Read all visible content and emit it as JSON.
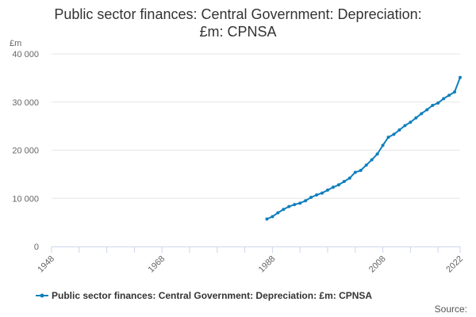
{
  "title_line1": "Public sector finances: Central Government: Depreciation:",
  "title_line2": "£m: CPNSA",
  "source_label": "Source:",
  "colors": {
    "series": "#0f7fbd",
    "grid": "#e6e6e6",
    "axis": "#ccd6eb"
  },
  "chart_data": {
    "type": "line",
    "title": "Public sector finances: Central Government: Depreciation: £m: CPNSA",
    "ylabel": "£m",
    "xlim": [
      1948,
      2022
    ],
    "ylim": [
      0,
      40000
    ],
    "x_ticks": [
      1948,
      1968,
      1988,
      2008,
      2022
    ],
    "x_minor_ticks": [
      1948,
      1953,
      1958,
      1963,
      1968,
      1973,
      1978,
      1983,
      1988,
      1993,
      1998,
      2003,
      2008,
      2013,
      2018,
      2022
    ],
    "y_ticks": [
      0,
      10000,
      20000,
      30000,
      40000
    ],
    "y_tick_labels": [
      "0",
      "10 000",
      "20 000",
      "30 000",
      "40 000"
    ],
    "grid": true,
    "legend_position": "bottom",
    "series": [
      {
        "name": "Public sector finances: Central Government: Depreciation: £m: CPNSA",
        "x": [
          1987,
          1988,
          1989,
          1990,
          1991,
          1992,
          1993,
          1994,
          1995,
          1996,
          1997,
          1998,
          1999,
          2000,
          2001,
          2002,
          2003,
          2004,
          2005,
          2006,
          2007,
          2008,
          2009,
          2010,
          2011,
          2012,
          2013,
          2014,
          2015,
          2016,
          2017,
          2018,
          2019,
          2020,
          2021,
          2022
        ],
        "values": [
          5700,
          6200,
          7000,
          7700,
          8300,
          8700,
          9000,
          9500,
          10200,
          10700,
          11100,
          11700,
          12300,
          12800,
          13500,
          14200,
          15400,
          15800,
          16900,
          18000,
          19200,
          21000,
          22700,
          23300,
          24200,
          25100,
          25800,
          26700,
          27600,
          28400,
          29300,
          29800,
          30700,
          31400,
          32100,
          35100
        ]
      }
    ]
  }
}
